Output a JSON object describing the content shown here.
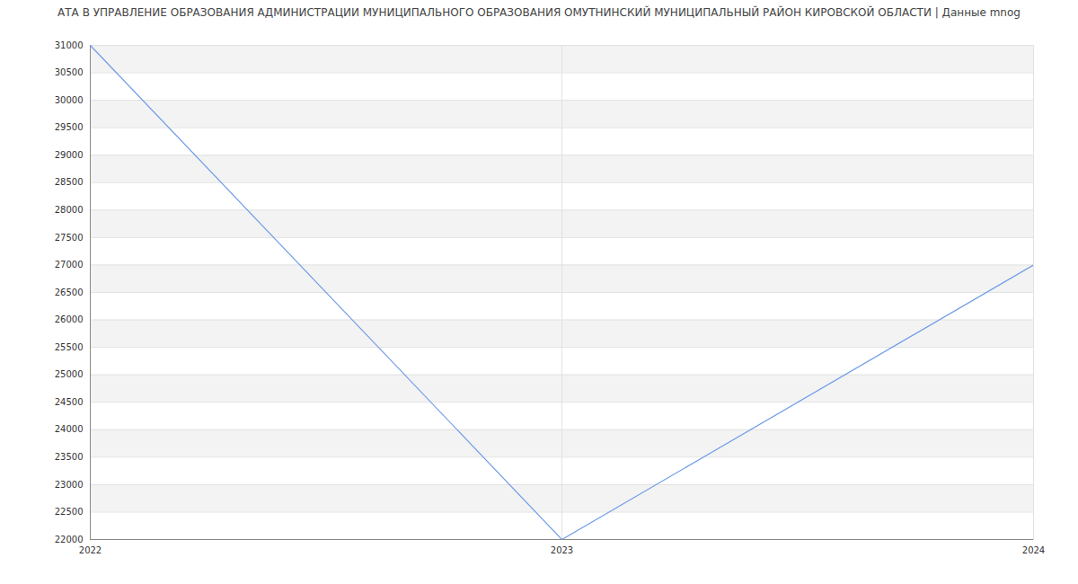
{
  "chart_data": {
    "type": "line",
    "title": "АТА В УПРАВЛЕНИЕ ОБРАЗОВАНИЯ АДМИНИСТРАЦИИ МУНИЦИПАЛЬНОГО ОБРАЗОВАНИЯ ОМУТНИНСКИЙ МУНИЦИПАЛЬНЫЙ РАЙОН КИРОВСКОЙ ОБЛАСТИ | Данные mnog",
    "x": [
      2022,
      2023,
      2024
    ],
    "values": [
      31000,
      22000,
      27000
    ],
    "color": "#6f9be8",
    "xlim": [
      2022,
      2024
    ],
    "xticks": [
      2022,
      2023,
      2024
    ],
    "ylim": [
      22000,
      31000
    ],
    "yticks": [
      22000,
      22500,
      23000,
      23500,
      24000,
      24500,
      25000,
      25500,
      26000,
      26500,
      27000,
      27500,
      28000,
      28500,
      29000,
      29500,
      30000,
      30500,
      31000
    ],
    "grid": true
  }
}
